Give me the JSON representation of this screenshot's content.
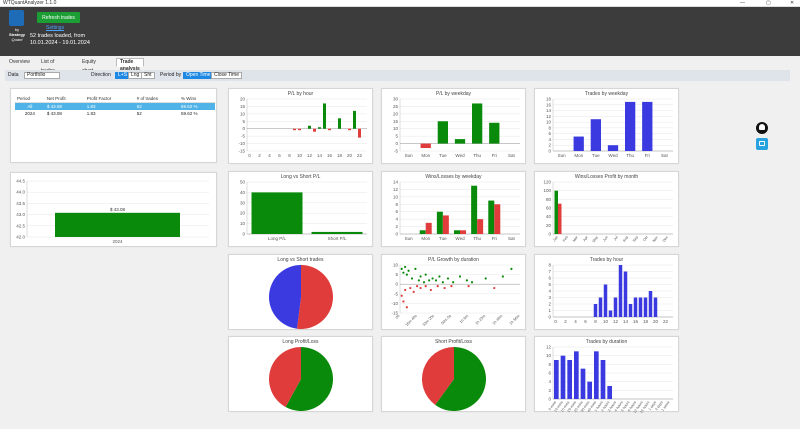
{
  "window": {
    "title": "WTQuantAnalyzer 1.1.0",
    "min": "—",
    "max": "▢",
    "close": "✕"
  },
  "logo": {
    "line1": "by",
    "line2": "Strategy",
    "line3": "Quant"
  },
  "header": {
    "refresh_label": "Refresh trades",
    "settings_label": "Settings",
    "loaded_line1": "52 trades loaded, from",
    "loaded_line2": "10.01.2024 - 19.01.2024"
  },
  "tabs": [
    {
      "label": "Overview",
      "active": false
    },
    {
      "label": "List of trades",
      "active": false
    },
    {
      "label": "Equity chart",
      "active": false
    },
    {
      "label": "Trade analysis",
      "active": true
    }
  ],
  "toolbar": {
    "data_label": "Data",
    "data_value": "Portfolio",
    "direction_label": "Direction",
    "direction_options": [
      {
        "label": "L+S",
        "on": true
      },
      {
        "label": "Lng",
        "on": false
      },
      {
        "label": "Sht",
        "on": false
      }
    ],
    "period_label": "Period by",
    "period_options": [
      {
        "label": "Open Time",
        "on": true
      },
      {
        "label": "Close Time",
        "on": false
      }
    ]
  },
  "stats_table": {
    "headers": [
      "Period",
      "Net Profit",
      "Profit Factor",
      "# of trades",
      "% Wins"
    ],
    "rows": [
      {
        "cells": [
          "All",
          "$ 43.08",
          "1.83",
          "52",
          "59.62 %"
        ],
        "selected": true
      },
      {
        "cells": [
          "2024",
          "$ 43.08",
          "1.83",
          "52",
          "59.62 %"
        ],
        "selected": false
      }
    ]
  },
  "colors": {
    "green": "#0a8a0a",
    "red": "#e03c3c",
    "blue": "#3a3ae0"
  },
  "charts": {
    "yearly": {
      "type": "bar",
      "categories": [
        "2024"
      ],
      "values": [
        43.08
      ],
      "value_label": "$ 43.08",
      "yticks": [
        "44.5",
        "44.0",
        "43.5",
        "43.0",
        "42.5",
        "42.0"
      ],
      "ylim": [
        42.0,
        44.5
      ]
    },
    "pl_hour": {
      "type": "bar",
      "title": "P/L by hour",
      "categories": [
        "0",
        "1",
        "2",
        "3",
        "4",
        "5",
        "6",
        "7",
        "8",
        "9",
        "10",
        "11",
        "12",
        "13",
        "14",
        "15",
        "16",
        "17",
        "18",
        "19",
        "20",
        "21",
        "22",
        "23"
      ],
      "xticks": [
        "0",
        "2",
        "4",
        "6",
        "8",
        "10",
        "12",
        "14",
        "16",
        "18",
        "20",
        "22"
      ],
      "values": [
        0,
        0,
        0,
        0,
        0,
        0,
        0,
        0,
        0,
        -1,
        -1,
        0,
        2,
        -2,
        1,
        17,
        -1,
        0,
        7,
        0,
        -1,
        12,
        -6,
        0
      ],
      "yticks": [
        "20",
        "15",
        "10",
        "5",
        "0",
        "-5",
        "-10",
        "-15"
      ],
      "ylim": [
        -15,
        20
      ]
    },
    "pl_weekday": {
      "type": "bar",
      "title": "P/L by weekday",
      "categories": [
        "Sun",
        "Mon",
        "Tue",
        "Wed",
        "Thu",
        "Fri",
        "Sat"
      ],
      "values": [
        0,
        -3,
        15,
        3,
        27,
        14,
        0
      ],
      "yticks": [
        "30",
        "25",
        "20",
        "15",
        "10",
        "5",
        "0",
        "-5"
      ],
      "ylim": [
        -5,
        30
      ]
    },
    "trades_weekday": {
      "type": "bar",
      "title": "Trades by weekday",
      "categories": [
        "Sun",
        "Mon",
        "Tue",
        "Wed",
        "Thu",
        "Fri",
        "Sat"
      ],
      "values": [
        0,
        5,
        11,
        2,
        17,
        17,
        0
      ],
      "yticks": [
        "18",
        "16",
        "14",
        "12",
        "10",
        "8",
        "6",
        "4",
        "2",
        "0"
      ],
      "ylim": [
        0,
        18
      ]
    },
    "long_short": {
      "type": "bar",
      "title": "Long vs Short P/L",
      "categories": [
        "Long P/L",
        "Short P/L"
      ],
      "values": [
        40,
        2
      ],
      "yticks": [
        "50",
        "40",
        "30",
        "20",
        "10",
        "0"
      ],
      "ylim": [
        0,
        50
      ]
    },
    "wins_losses_weekday": {
      "type": "bar",
      "title": "Wins/Losses by weekday",
      "categories": [
        "Sun",
        "Mon",
        "Tue",
        "Wed",
        "Thu",
        "Fri",
        "Sat"
      ],
      "series": [
        {
          "name": "Wins",
          "values": [
            0,
            1,
            6,
            1,
            13,
            9,
            0
          ]
        },
        {
          "name": "Losses",
          "values": [
            0,
            3,
            5,
            1,
            4,
            8,
            0
          ]
        }
      ],
      "yticks": [
        "14",
        "12",
        "10",
        "8",
        "6",
        "4",
        "2",
        "0"
      ],
      "ylim": [
        0,
        14
      ]
    },
    "wins_losses_month": {
      "type": "bar",
      "title": "Wins/Losses Profit by month",
      "categories": [
        "Jan",
        "Feb",
        "Mar",
        "Apr",
        "May",
        "Jun",
        "Jul",
        "Aug",
        "Sep",
        "Oct",
        "Nov",
        "Dec"
      ],
      "series": [
        {
          "name": "Wins",
          "values": [
            100,
            0,
            0,
            0,
            0,
            0,
            0,
            0,
            0,
            0,
            0,
            0
          ]
        },
        {
          "name": "Losses",
          "values": [
            70,
            0,
            0,
            0,
            0,
            0,
            0,
            0,
            0,
            0,
            0,
            0
          ]
        }
      ],
      "yticks": [
        "120",
        "100",
        "80",
        "60",
        "40",
        "20",
        "0"
      ],
      "ylim": [
        0,
        120
      ]
    },
    "long_short_trades": {
      "type": "pie",
      "title": "Long vs Short trades",
      "values": [
        52,
        48
      ],
      "colors": [
        "#e03c3c",
        "#3a3ae0"
      ]
    },
    "growth_duration": {
      "type": "scatter",
      "title": "P/L Growth by duration",
      "xticks": [
        "0h",
        "16m 40s",
        "33m 20s",
        "50m 0s",
        "1h 6m",
        "1h 23m",
        "1h 40m",
        "1h 56m"
      ],
      "yticks": [
        "10",
        "5",
        "0",
        "-5",
        "-10",
        "-15"
      ],
      "ylim": [
        -15,
        10
      ],
      "xlim": [
        0,
        7000
      ],
      "green_points": [
        [
          100,
          8
        ],
        [
          200,
          6
        ],
        [
          300,
          9
        ],
        [
          400,
          5
        ],
        [
          500,
          7
        ],
        [
          700,
          3
        ],
        [
          900,
          8
        ],
        [
          1100,
          2
        ],
        [
          1200,
          4
        ],
        [
          1400,
          1
        ],
        [
          1500,
          5
        ],
        [
          1700,
          2
        ],
        [
          1900,
          3
        ],
        [
          2100,
          2
        ],
        [
          2300,
          4
        ],
        [
          2500,
          1
        ],
        [
          2800,
          3
        ],
        [
          3100,
          1
        ],
        [
          3500,
          4
        ],
        [
          3900,
          2
        ],
        [
          4200,
          1
        ],
        [
          5000,
          3
        ],
        [
          6000,
          4
        ],
        [
          6500,
          8
        ]
      ],
      "red_points": [
        [
          100,
          -6
        ],
        [
          200,
          -9
        ],
        [
          300,
          -3
        ],
        [
          400,
          -12
        ],
        [
          600,
          -2
        ],
        [
          800,
          -4
        ],
        [
          1000,
          -1
        ],
        [
          1200,
          -2
        ],
        [
          1500,
          -1
        ],
        [
          1800,
          -3
        ],
        [
          2200,
          -1
        ],
        [
          2600,
          -2
        ],
        [
          3000,
          -1
        ],
        [
          4000,
          -1
        ],
        [
          5500,
          -2
        ]
      ]
    },
    "trades_hour": {
      "type": "bar",
      "title": "Trades by hour",
      "categories": [
        "0",
        "1",
        "2",
        "3",
        "4",
        "5",
        "6",
        "7",
        "8",
        "9",
        "10",
        "11",
        "12",
        "13",
        "14",
        "15",
        "16",
        "17",
        "18",
        "19",
        "20",
        "21",
        "22",
        "23"
      ],
      "xticks": [
        "0",
        "2",
        "4",
        "6",
        "8",
        "10",
        "12",
        "14",
        "16",
        "18",
        "20",
        "22"
      ],
      "values": [
        0,
        0,
        0,
        0,
        0,
        0,
        0,
        0,
        2,
        3,
        5,
        1,
        3,
        8,
        7,
        2,
        3,
        3,
        3,
        4,
        3,
        0,
        0,
        0
      ],
      "yticks": [
        "8",
        "7",
        "6",
        "5",
        "4",
        "3",
        "2",
        "1",
        "0"
      ],
      "ylim": [
        0,
        8
      ]
    },
    "long_pl": {
      "type": "pie",
      "title": "Long Profit/Loss",
      "values": [
        58,
        42
      ],
      "colors": [
        "#0a8a0a",
        "#e03c3c"
      ]
    },
    "short_pl": {
      "type": "pie",
      "title": "Short Profit/Loss",
      "values": [
        60,
        40
      ],
      "colors": [
        "#0a8a0a",
        "#e03c3c"
      ]
    },
    "trades_duration": {
      "type": "bar",
      "title": "Trades by duration",
      "categories": [
        "5 mins",
        "10 mins",
        "15 mins",
        "20 mins",
        "25 mins",
        "30 mins",
        "45 mins",
        "1 hours",
        "2 hours",
        "3 hours",
        "4 hours",
        "6 hours",
        "8 hours",
        "12 hours",
        "16 hours",
        "1 days",
        "2 days",
        "1 week"
      ],
      "values": [
        9,
        10,
        9,
        11,
        7,
        4,
        11,
        9,
        3,
        0,
        0,
        0,
        0,
        0,
        0,
        0,
        0,
        0
      ],
      "yticks": [
        "12",
        "10",
        "8",
        "6",
        "4",
        "2",
        "0"
      ],
      "ylim": [
        0,
        12
      ]
    }
  }
}
